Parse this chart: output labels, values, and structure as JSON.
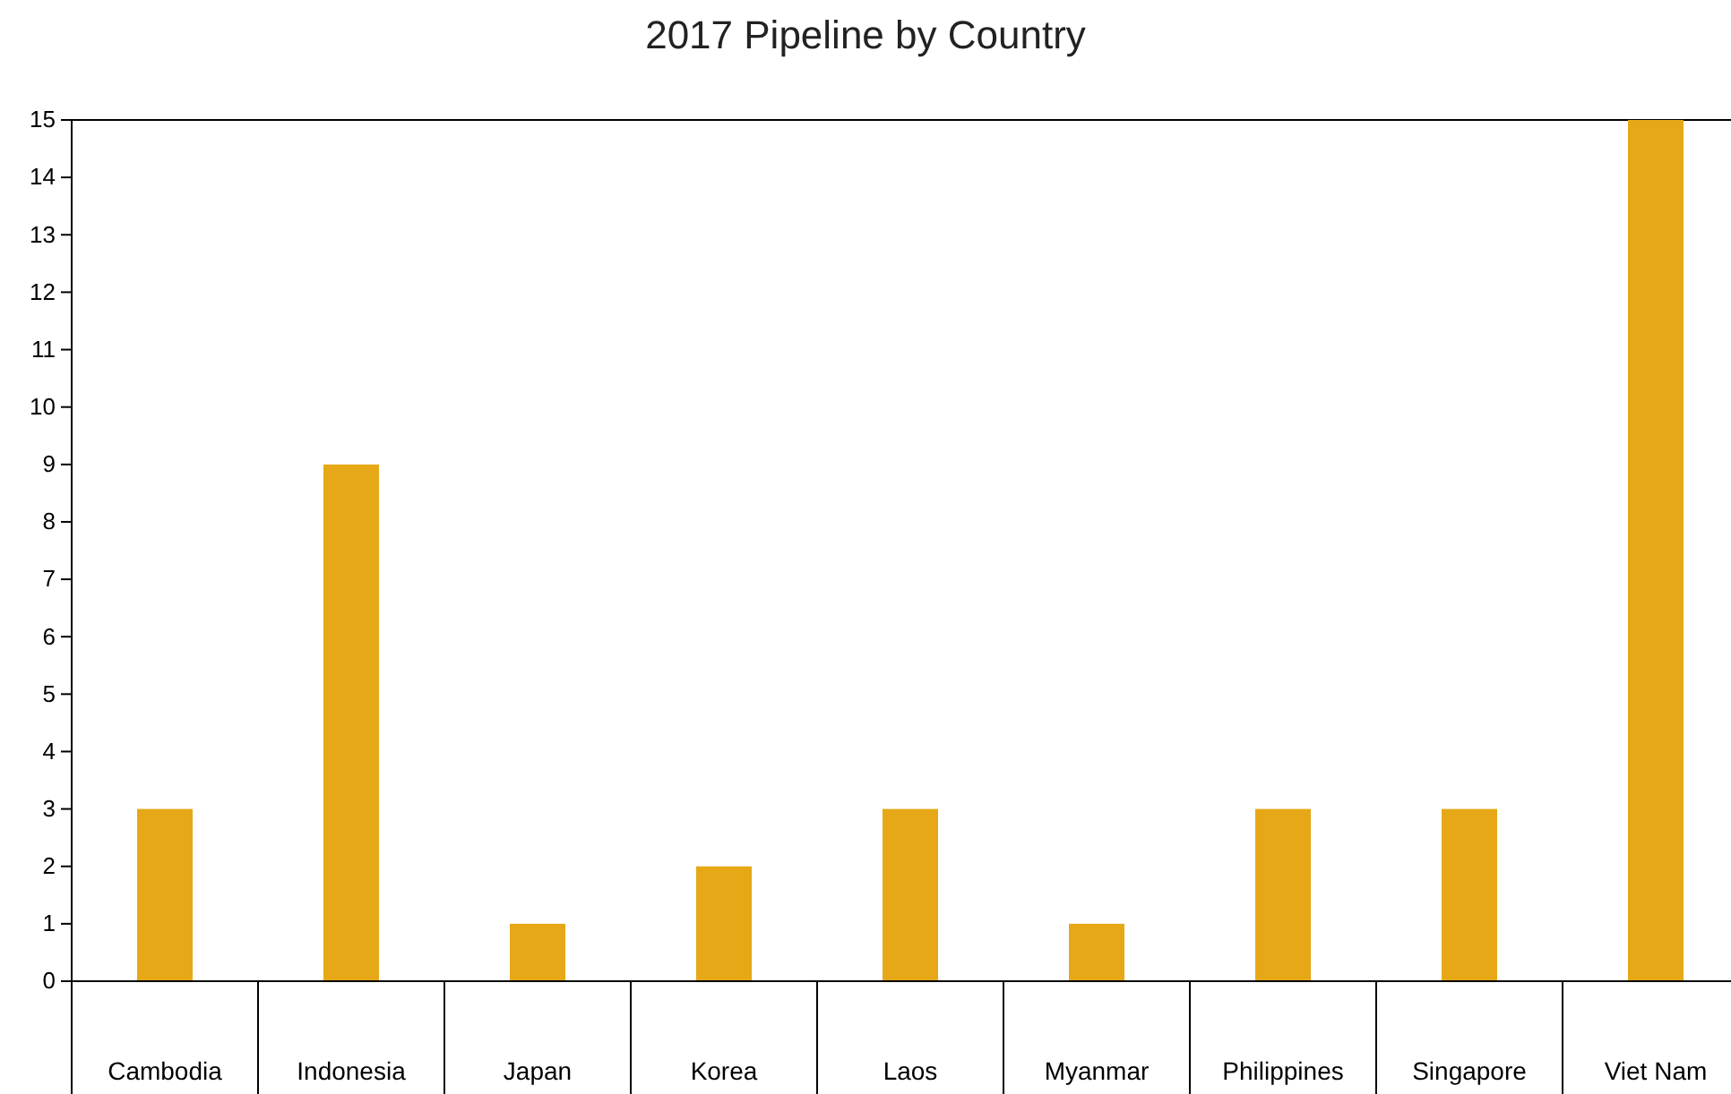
{
  "chart_data": {
    "type": "bar",
    "title": "2017 Pipeline by Country",
    "categories": [
      "Cambodia",
      "Indonesia",
      "Japan",
      "Korea",
      "Laos",
      "Myanmar",
      "Philippines",
      "Singapore",
      "Viet Nam"
    ],
    "values": [
      3,
      9,
      1,
      2,
      3,
      1,
      3,
      3,
      15
    ],
    "color": "#e6a817",
    "ylim": [
      0,
      15
    ],
    "yticks": [
      0,
      1,
      2,
      3,
      4,
      5,
      6,
      7,
      8,
      9,
      10,
      11,
      12,
      13,
      14,
      15
    ],
    "grid": false
  }
}
